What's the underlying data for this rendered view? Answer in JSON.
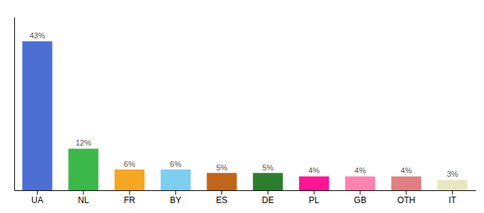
{
  "chart_data": {
    "type": "bar",
    "categories": [
      "UA",
      "NL",
      "FR",
      "BY",
      "ES",
      "DE",
      "PL",
      "GB",
      "OTH",
      "IT"
    ],
    "values": [
      43,
      12,
      6,
      6,
      5,
      5,
      4,
      4,
      4,
      3
    ],
    "value_labels": [
      "43%",
      "12%",
      "6%",
      "6%",
      "5%",
      "5%",
      "4%",
      "4%",
      "4%",
      "3%"
    ],
    "colors": [
      "#4d6fd4",
      "#3cb84a",
      "#f5a623",
      "#7ecef0",
      "#c1651a",
      "#2e7d2e",
      "#ff1493",
      "#ff82b0",
      "#e08080",
      "#e8e8c0"
    ],
    "ylim": [
      0,
      50
    ],
    "data_labels": true,
    "tick_labels": "x",
    "grid": false
  }
}
